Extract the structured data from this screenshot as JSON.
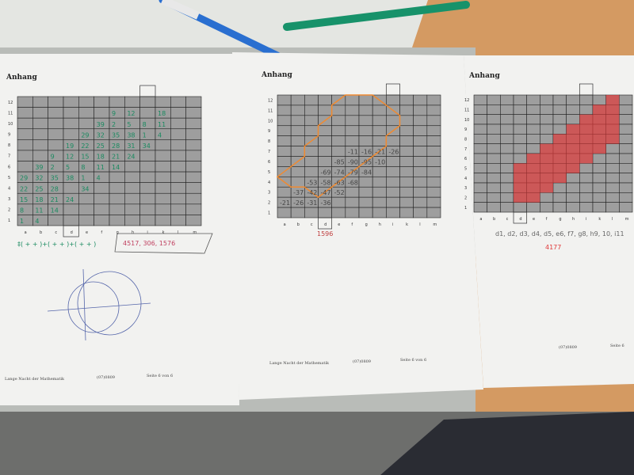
{
  "sheets": [
    {
      "heading": "Anhang",
      "footer_left": "Lange Nacht der Mathematik",
      "footer_mid": "(07)0809",
      "footer_right": "Seite 6 von 6",
      "handwriting": [
        "‡( + + )+( + + )+( + + )",
        "4517, 306, 1576"
      ]
    },
    {
      "heading": "Anhang",
      "footer_left": "Lange Nacht der Mathematik",
      "footer_mid": "(07)0809",
      "footer_right": "Seite 6 von 6",
      "handwriting": [
        "1596"
      ]
    },
    {
      "heading": "Anhang",
      "footer_left": "",
      "footer_mid": "(07)0809",
      "footer_right": "Seite 6",
      "handwriting": [
        "d1, d2, d3, d4, d5, e6, f7, g8, h9, 10, i11",
        "4177"
      ]
    }
  ],
  "grid": {
    "columns": [
      "a",
      "b",
      "c",
      "d",
      "e",
      "f",
      "g",
      "h",
      "i",
      "k",
      "l",
      "m"
    ],
    "rows": [
      "1",
      "2",
      "3",
      "4",
      "5",
      "6",
      "7",
      "8",
      "9",
      "10",
      "11",
      "12"
    ]
  },
  "colors": {
    "desk": "#b9bcb8",
    "table": "#d49a62",
    "paper": "#f2f2f0",
    "cell": "#9e9e9e",
    "orange": "#f08a30",
    "red": "#e03a3a",
    "green_pen": "#1a8a60",
    "blue_pen": "#2a6fd0"
  }
}
